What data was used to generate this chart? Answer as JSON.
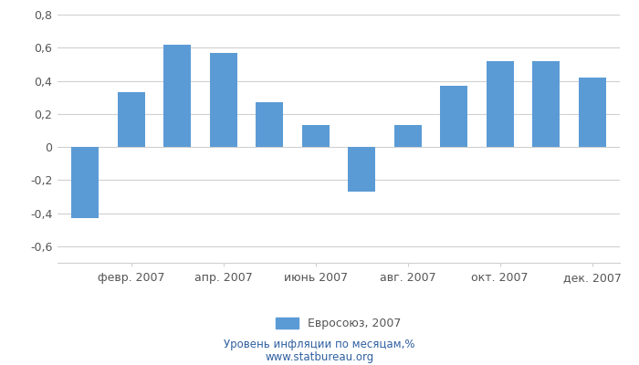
{
  "xtick_labels": [
    "февр. 2007",
    "апр. 2007",
    "июнь 2007",
    "авг. 2007",
    "окт. 2007",
    "дек. 2007"
  ],
  "xtick_positions": [
    1,
    3,
    5,
    7,
    9,
    11
  ],
  "values": [
    -0.43,
    0.33,
    0.62,
    0.57,
    0.27,
    0.13,
    -0.27,
    0.13,
    0.37,
    0.52,
    0.52,
    0.42
  ],
  "bar_color": "#5B9BD5",
  "ylim": [
    -0.7,
    0.8
  ],
  "yticks": [
    -0.6,
    -0.4,
    -0.2,
    0.0,
    0.2,
    0.4,
    0.6,
    0.8
  ],
  "ytick_labels": [
    "-0,6",
    "-0,4",
    "-0,2",
    "0",
    "0,2",
    "0,4",
    "0,6",
    "0,8"
  ],
  "legend_label": "Евросоюз, 2007",
  "footer_line1": "Уровень инфляции по месяцам,%",
  "footer_line2": "www.statbureau.org",
  "background_color": "#ffffff",
  "plot_bg_color": "#ffffff",
  "grid_color": "#d0d0d0",
  "text_color": "#555555",
  "footer_color": "#3060a0",
  "bar_width": 0.6
}
